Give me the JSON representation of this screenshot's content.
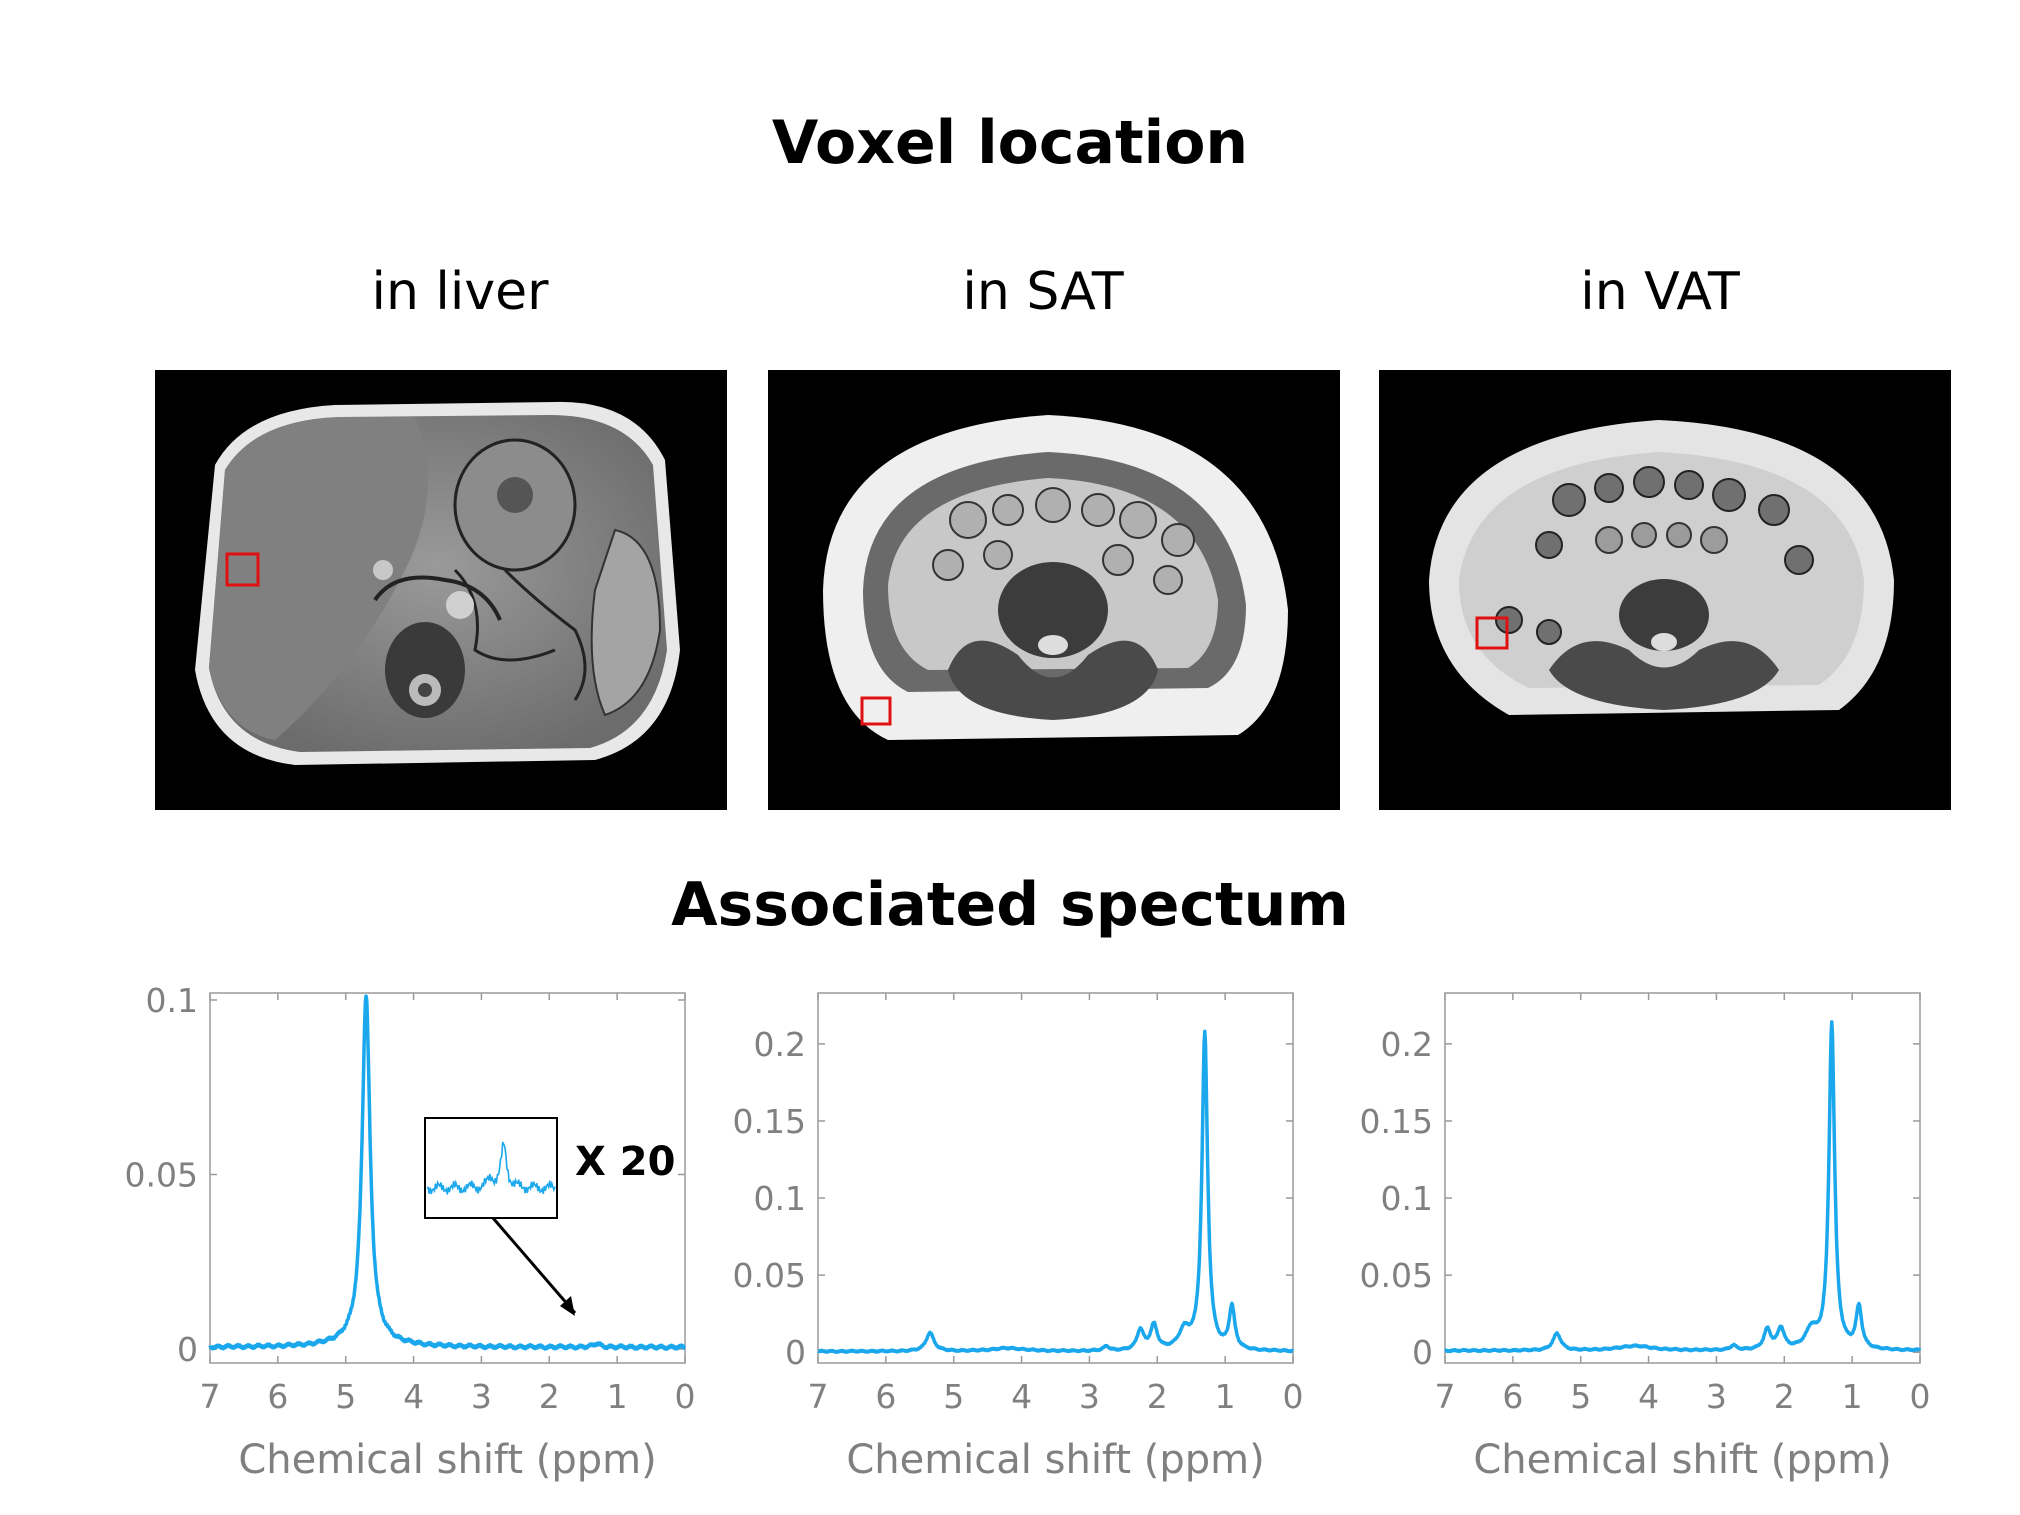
{
  "figure": {
    "title": "Voxel location",
    "spectrum_title": "Associated spectum",
    "panels": [
      {
        "label": "in liver"
      },
      {
        "label": "in SAT"
      },
      {
        "label": "in VAT"
      }
    ],
    "inset_label": "X 20",
    "colors": {
      "line": "#1aa7ec",
      "voxel_box": "#e01010",
      "axis_text": "#808080"
    }
  },
  "chart_data": [
    {
      "type": "line",
      "title": "",
      "xlabel": "Chemical shift (ppm)",
      "ylabel": "",
      "xlim": [
        7,
        0
      ],
      "ylim": [
        -0.004,
        0.102
      ],
      "xticks": [
        "7",
        "6",
        "5",
        "4",
        "3",
        "2",
        "1",
        "0"
      ],
      "yticks": [
        {
          "v": 0,
          "t": "0"
        },
        {
          "v": 0.05,
          "t": "0.05"
        },
        {
          "v": 0.1,
          "t": "0.1"
        }
      ],
      "series": [
        {
          "name": "liver",
          "base": 0.0005,
          "peaks": [
            {
              "x": 4.7,
              "h": 0.0985,
              "w": 0.07
            },
            {
              "x": 4.7,
              "h": 0.0025,
              "w": 0.35
            },
            {
              "x": 1.3,
              "h": 0.001,
              "w": 0.06
            }
          ]
        }
      ],
      "inset": {
        "magnification": "X 20"
      }
    },
    {
      "type": "line",
      "title": "",
      "xlabel": "Chemical shift (ppm)",
      "ylabel": "",
      "xlim": [
        7,
        0
      ],
      "ylim": [
        -0.007,
        0.233
      ],
      "xticks": [
        "7",
        "6",
        "5",
        "4",
        "3",
        "2",
        "1",
        "0"
      ],
      "yticks": [
        {
          "v": 0,
          "t": "0"
        },
        {
          "v": 0.05,
          "t": "0.05"
        },
        {
          "v": 0.1,
          "t": "0.1"
        },
        {
          "v": 0.15,
          "t": "0.15"
        },
        {
          "v": 0.2,
          "t": "0.2"
        }
      ],
      "series": [
        {
          "name": "SAT",
          "base": 0.0005,
          "peaks": [
            {
              "x": 1.3,
              "h": 0.2055,
              "w": 0.05
            },
            {
              "x": 0.9,
              "h": 0.0275,
              "w": 0.05
            },
            {
              "x": 1.6,
              "h": 0.012,
              "w": 0.1
            },
            {
              "x": 2.25,
              "h": 0.013,
              "w": 0.06
            },
            {
              "x": 2.05,
              "h": 0.016,
              "w": 0.06
            },
            {
              "x": 2.75,
              "h": 0.003,
              "w": 0.05
            },
            {
              "x": 5.35,
              "h": 0.012,
              "w": 0.07
            },
            {
              "x": 4.2,
              "h": 0.002,
              "w": 0.3
            }
          ]
        }
      ]
    },
    {
      "type": "line",
      "title": "",
      "xlabel": "Chemical shift (ppm)",
      "ylabel": "",
      "xlim": [
        7,
        0
      ],
      "ylim": [
        -0.007,
        0.233
      ],
      "xticks": [
        "7",
        "6",
        "5",
        "4",
        "3",
        "2",
        "1",
        "0"
      ],
      "yticks": [
        {
          "v": 0,
          "t": "0"
        },
        {
          "v": 0.05,
          "t": "0.05"
        },
        {
          "v": 0.1,
          "t": "0.1"
        },
        {
          "v": 0.15,
          "t": "0.15"
        },
        {
          "v": 0.2,
          "t": "0.2"
        }
      ],
      "series": [
        {
          "name": "VAT",
          "base": 0.001,
          "peaks": [
            {
              "x": 1.3,
              "h": 0.2115,
              "w": 0.05
            },
            {
              "x": 0.9,
              "h": 0.027,
              "w": 0.05
            },
            {
              "x": 1.6,
              "h": 0.012,
              "w": 0.1
            },
            {
              "x": 2.25,
              "h": 0.013,
              "w": 0.06
            },
            {
              "x": 2.05,
              "h": 0.0135,
              "w": 0.06
            },
            {
              "x": 2.75,
              "h": 0.003,
              "w": 0.05
            },
            {
              "x": 5.35,
              "h": 0.011,
              "w": 0.07
            },
            {
              "x": 4.2,
              "h": 0.003,
              "w": 0.3
            }
          ]
        }
      ]
    }
  ]
}
